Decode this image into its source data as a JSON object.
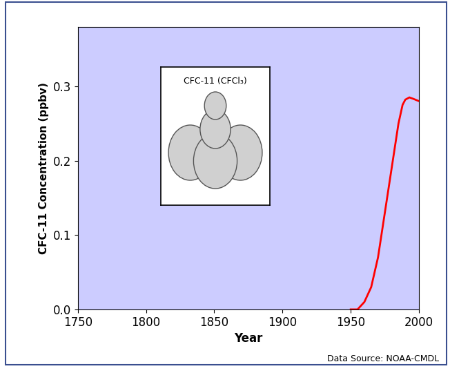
{
  "chart_data": {
    "type": "line",
    "y_label": "CFC-11 Concentration (ppbv)",
    "x_label": "Year",
    "annotations": [
      "CFC-11 (CFCl₃)",
      "Data Source: NOAA-CMDL"
    ],
    "x": [
      1950,
      1955,
      1960,
      1965,
      1970,
      1975,
      1980,
      1985,
      1988,
      1990,
      1993,
      1996,
      2000
    ],
    "values": [
      0.0,
      0.0,
      0.01,
      0.03,
      0.07,
      0.13,
      0.19,
      0.25,
      0.275,
      0.282,
      0.285,
      0.283,
      0.28
    ],
    "color": "#ff0000",
    "xlim": [
      1750,
      2000
    ],
    "xticks": [
      1750,
      1800,
      1850,
      1900,
      1950,
      2000
    ],
    "ylim": [
      0,
      0.38
    ],
    "yticks": [
      0.0,
      0.1,
      0.2,
      0.3
    ],
    "grid": false
  }
}
